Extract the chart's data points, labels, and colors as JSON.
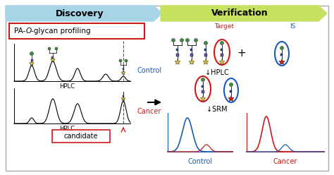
{
  "outer_bg": "#ffffff",
  "discovery_bg": "#a8d4e8",
  "verification_bg": "#c8e060",
  "discovery_text": "Discovery",
  "verification_text": "Verification",
  "control_text": "Control",
  "cancer_text": "Cancer",
  "candidate_text": "candidate",
  "hplc_text": "HPLC",
  "target_text": "Target",
  "is_text": "IS",
  "hplc3_text": "↓HPLC",
  "srm_text": "↓SRM",
  "control2_text": "Control",
  "cancer2_text": "Cancer",
  "blue_color": "#1a5cb8",
  "red_color": "#cc1a1a",
  "yellow_color": "#e8c820",
  "purple_color": "#7050b0",
  "navy_color": "#2848a0",
  "green_color": "#409040"
}
